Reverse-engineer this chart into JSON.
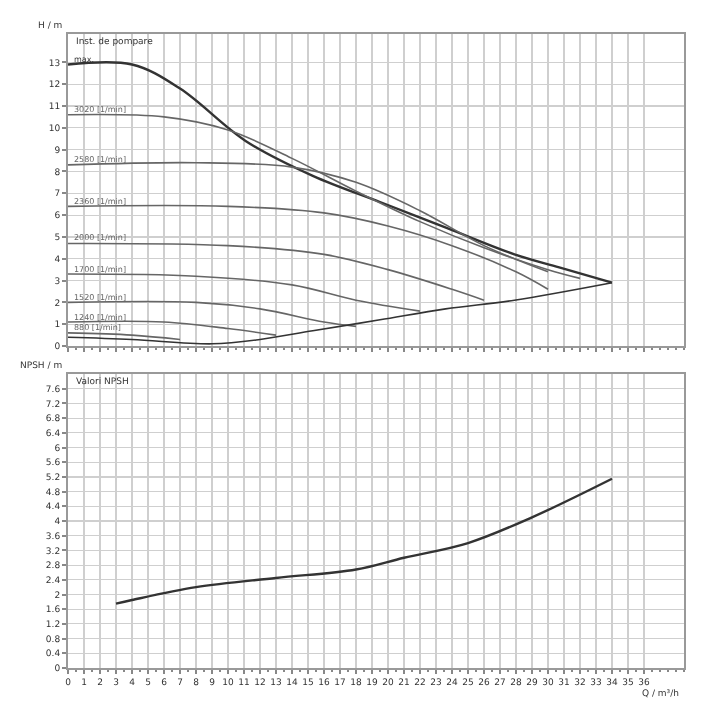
{
  "chart_data": [
    {
      "type": "line",
      "title": "Inst. de pompare",
      "ylabel": "H / m",
      "xlim": [
        0,
        38.5
      ],
      "ylim": [
        0,
        14.3
      ],
      "xticks": [
        0,
        1,
        2,
        3,
        4,
        5,
        6,
        7,
        8,
        9,
        10,
        11,
        12,
        13,
        14,
        15,
        16,
        17,
        18,
        19,
        20,
        21,
        22,
        23,
        24,
        25,
        26,
        27,
        28,
        29,
        30,
        31,
        32,
        33,
        34,
        35,
        36
      ],
      "yticks": [
        0,
        1,
        2,
        3,
        4,
        5,
        6,
        7,
        8,
        9,
        10,
        11,
        12,
        13
      ],
      "grid": true,
      "tick_labels": "y",
      "legend": false,
      "marker": "none",
      "line_style": "solid",
      "series": [
        {
          "name": "max.",
          "color": "#333333",
          "x": [
            0,
            4,
            7,
            11.1,
            15.3,
            19.5,
            23.7,
            27.9,
            30.7,
            34
          ],
          "values": [
            12.9,
            12.9,
            11.8,
            9.4,
            7.8,
            6.6,
            5.4,
            4.2,
            3.6,
            2.9
          ]
        },
        {
          "name": "3020 [1/min]",
          "color": "#666666",
          "x": [
            0,
            6,
            10,
            14,
            18,
            22,
            26,
            30,
            32
          ],
          "values": [
            10.6,
            10.5,
            9.9,
            8.6,
            7.1,
            5.7,
            4.5,
            3.5,
            3.1
          ]
        },
        {
          "name": "2580 [1/min]",
          "color": "#666666",
          "x": [
            0,
            8,
            14,
            18,
            22,
            26,
            30
          ],
          "values": [
            8.3,
            8.4,
            8.2,
            7.5,
            6.2,
            4.6,
            3.4
          ]
        },
        {
          "name": "2360 [1/min]",
          "color": "#666666",
          "x": [
            0,
            10,
            16,
            20,
            24,
            28,
            30
          ],
          "values": [
            6.4,
            6.4,
            6.1,
            5.5,
            4.6,
            3.4,
            2.6
          ]
        },
        {
          "name": "2000 [1/min]",
          "color": "#666666",
          "x": [
            0,
            10,
            16,
            20,
            24,
            26
          ],
          "values": [
            4.7,
            4.6,
            4.2,
            3.5,
            2.6,
            2.1
          ]
        },
        {
          "name": "1700 [1/min]",
          "color": "#666666",
          "x": [
            0,
            8,
            14,
            18,
            22
          ],
          "values": [
            3.3,
            3.2,
            2.8,
            2.1,
            1.6
          ]
        },
        {
          "name": "1520 [1/min]",
          "color": "#666666",
          "x": [
            0,
            8,
            12,
            16,
            18
          ],
          "values": [
            2,
            2,
            1.7,
            1.1,
            0.9
          ]
        },
        {
          "name": "1240 [1/min]",
          "color": "#666666",
          "x": [
            0,
            6,
            10,
            13
          ],
          "values": [
            1.1,
            1.1,
            0.8,
            0.5
          ]
        },
        {
          "name": "880 [1/min]",
          "color": "#666666",
          "x": [
            0,
            4,
            7
          ],
          "values": [
            0.6,
            0.5,
            0.3
          ]
        },
        {
          "color": "#333333",
          "x": [
            0,
            4,
            9,
            12,
            15.3,
            19.5,
            23.6,
            27.9,
            34
          ],
          "values": [
            0.4,
            0.3,
            0.1,
            0.3,
            0.7,
            1.2,
            1.7,
            2.1,
            2.9
          ]
        }
      ]
    },
    {
      "type": "line",
      "title": "Valori NPSH",
      "ylabel": "NPSH / m",
      "xlabel": "Q / m³/h",
      "xlim": [
        0,
        38.5
      ],
      "ylim": [
        0,
        8
      ],
      "xticks": [
        0,
        1,
        2,
        3,
        4,
        5,
        6,
        7,
        8,
        9,
        10,
        11,
        12,
        13,
        14,
        15,
        16,
        17,
        18,
        19,
        20,
        21,
        22,
        23,
        24,
        25,
        26,
        27,
        28,
        29,
        30,
        31,
        32,
        33,
        34,
        35,
        36
      ],
      "yticks": [
        0,
        0.4,
        0.8,
        1.2,
        1.6,
        2,
        2.4,
        2.8,
        3.2,
        3.6,
        4,
        4.4,
        4.8,
        5.2,
        5.6,
        6,
        6.4,
        6.8,
        7.2,
        7.6
      ],
      "grid": true,
      "legend": false,
      "marker": "none",
      "line_style": "solid",
      "series": [
        {
          "color": "#333333",
          "x": [
            3,
            4,
            8,
            13,
            18,
            21,
            25,
            29,
            34
          ],
          "values": [
            1.75,
            1.85,
            2.2,
            2.45,
            2.68,
            3,
            3.4,
            4.1,
            5.15
          ]
        }
      ]
    }
  ]
}
